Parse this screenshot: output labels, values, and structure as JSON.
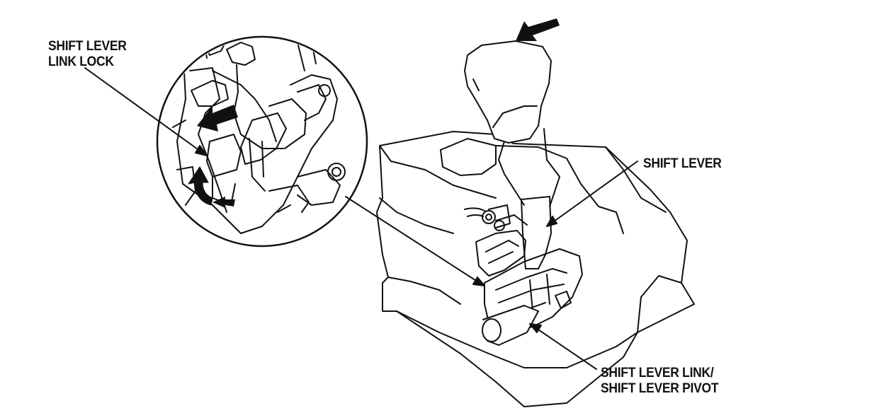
{
  "labels": {
    "link_lock": [
      "SHIFT LEVER",
      "LINK LOCK"
    ],
    "shift_lever": "SHIFT LEVER",
    "pivot": [
      "SHIFT LEVER LINK/",
      "SHIFT LEVER PIVOT"
    ]
  },
  "colors": {
    "ink": "#111111",
    "paper": "#ffffff",
    "arrow_fill": "#111111"
  },
  "icons": {
    "push_arrow": "arrow-down-left-icon",
    "pull_arrow": "arrow-left-icon",
    "lift_arrow": "curved-arrow-up-icon"
  }
}
